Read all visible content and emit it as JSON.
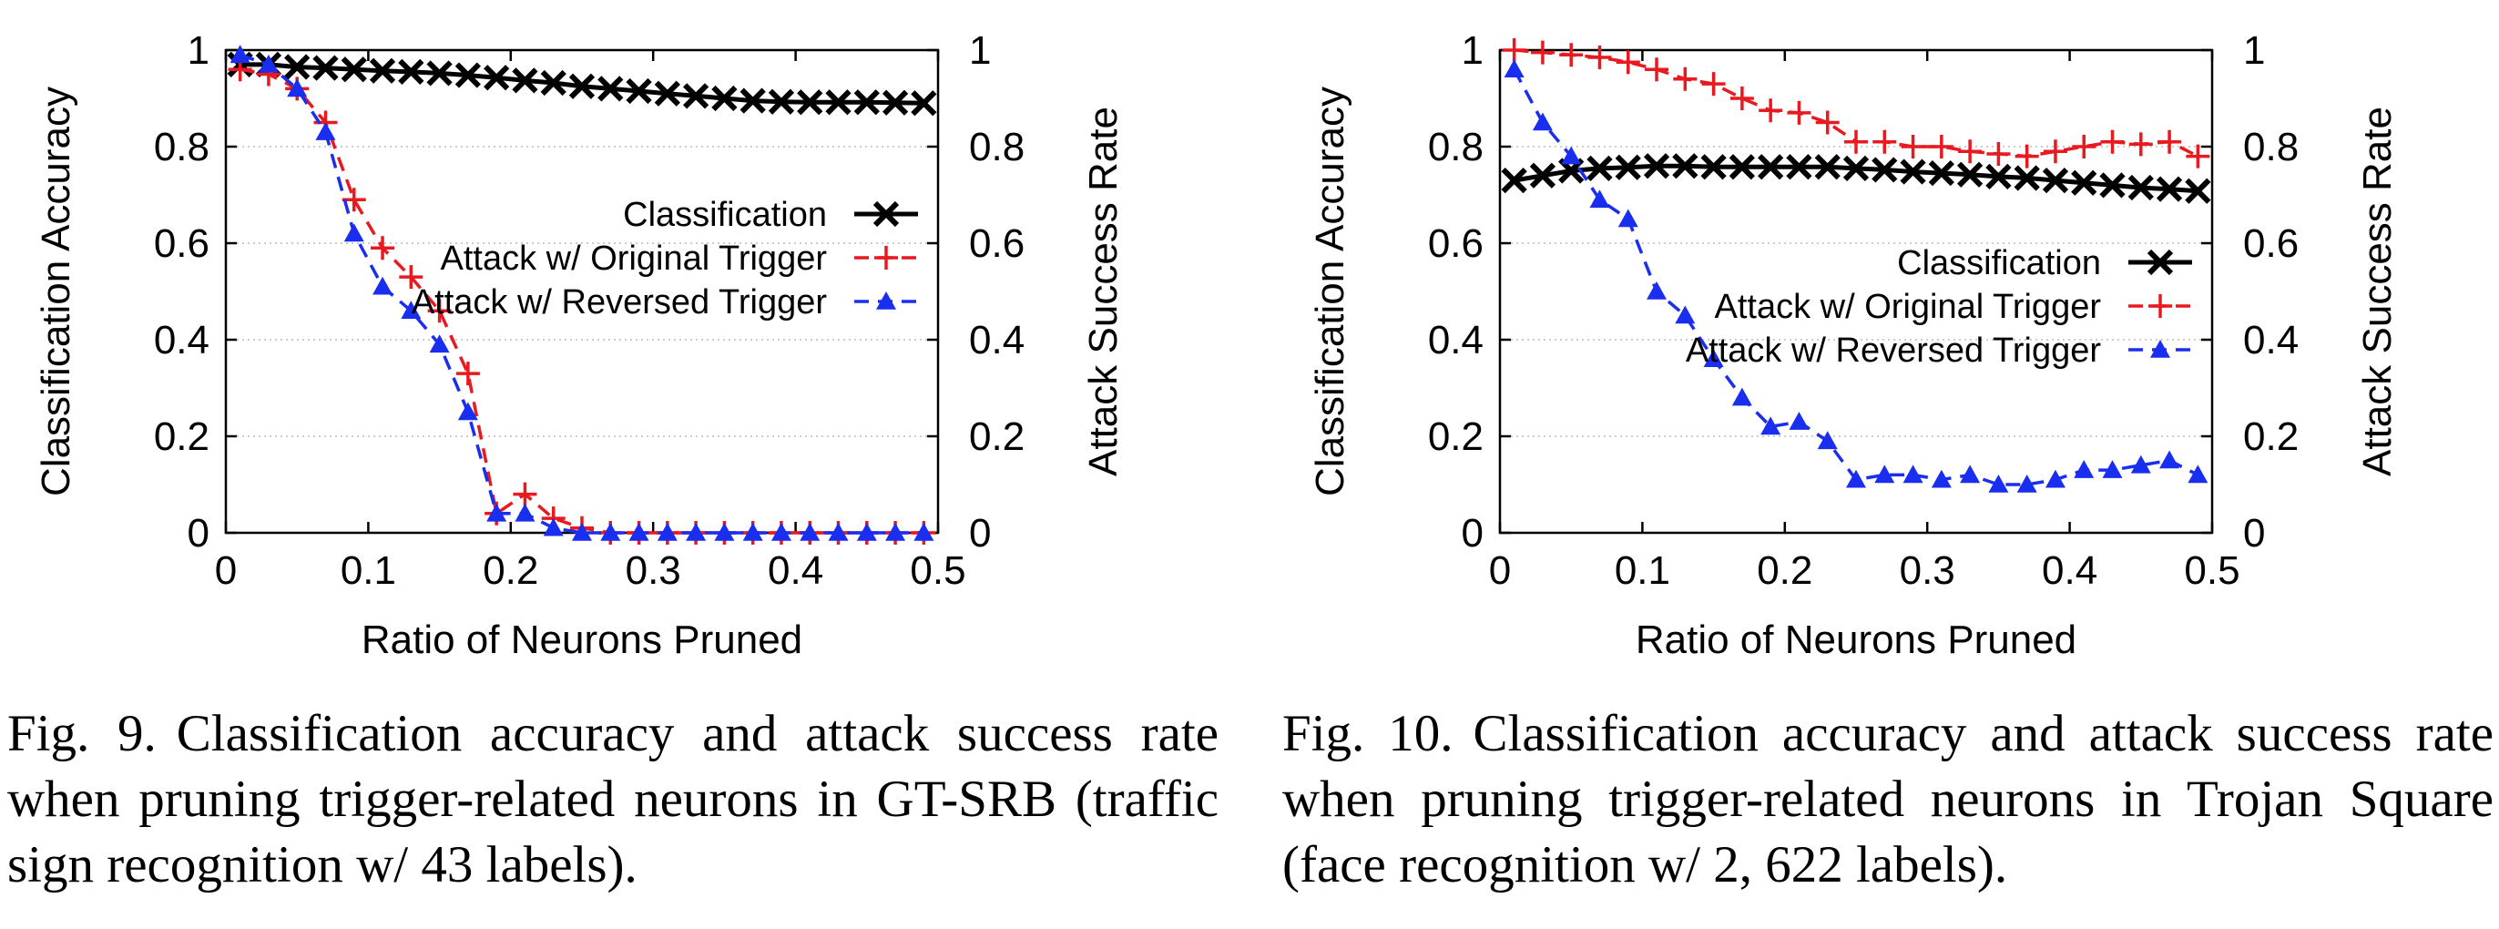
{
  "chart_data": [
    {
      "type": "line",
      "xlabel": "Ratio of Neurons Pruned",
      "ylabel": "Classification Accuracy",
      "y2label": "Attack Success Rate",
      "xlim": [
        0,
        0.5
      ],
      "ylim": [
        0,
        1
      ],
      "y2lim": [
        0,
        1
      ],
      "xticks": [
        "0",
        "0.1",
        "0.2",
        "0.3",
        "0.4",
        "0.5"
      ],
      "yticks": [
        "0",
        "0.2",
        "0.4",
        "0.6",
        "0.8",
        "1"
      ],
      "grid": true,
      "legend_position": "center-right",
      "series": [
        {
          "name": "Classification",
          "color": "#000000",
          "marker": "x",
          "dash": "solid",
          "x": [
            0.01,
            0.03,
            0.05,
            0.07,
            0.09,
            0.11,
            0.13,
            0.15,
            0.17,
            0.19,
            0.21,
            0.23,
            0.25,
            0.27,
            0.29,
            0.31,
            0.33,
            0.35,
            0.37,
            0.39,
            0.41,
            0.43,
            0.45,
            0.47,
            0.49
          ],
          "y": [
            0.97,
            0.97,
            0.965,
            0.963,
            0.96,
            0.957,
            0.955,
            0.952,
            0.948,
            0.943,
            0.937,
            0.932,
            0.925,
            0.92,
            0.915,
            0.91,
            0.905,
            0.9,
            0.895,
            0.893,
            0.892,
            0.892,
            0.892,
            0.891,
            0.89
          ]
        },
        {
          "name": "Attack w/ Original Trigger",
          "color": "#e8191f",
          "marker": "+",
          "dash": "dashed",
          "x": [
            0.01,
            0.03,
            0.05,
            0.07,
            0.09,
            0.11,
            0.13,
            0.15,
            0.17,
            0.19,
            0.21,
            0.23,
            0.25,
            0.27,
            0.29,
            0.31,
            0.33,
            0.35,
            0.37,
            0.39,
            0.41,
            0.43,
            0.45,
            0.47,
            0.49
          ],
          "y": [
            0.96,
            0.95,
            0.92,
            0.85,
            0.69,
            0.59,
            0.53,
            0.46,
            0.33,
            0.04,
            0.08,
            0.03,
            0.01,
            0.0,
            0.0,
            0.0,
            0.0,
            0.0,
            0.0,
            0.0,
            0.0,
            0.0,
            0.0,
            0.0,
            0.0
          ]
        },
        {
          "name": "Attack w/ Reversed Trigger",
          "color": "#1a2ef0",
          "marker": "triangle",
          "dash": "dashed",
          "x": [
            0.01,
            0.03,
            0.05,
            0.07,
            0.09,
            0.11,
            0.13,
            0.15,
            0.17,
            0.19,
            0.21,
            0.23,
            0.25,
            0.27,
            0.29,
            0.31,
            0.33,
            0.35,
            0.37,
            0.39,
            0.41,
            0.43,
            0.45,
            0.47,
            0.49
          ],
          "y": [
            0.99,
            0.97,
            0.92,
            0.83,
            0.62,
            0.51,
            0.46,
            0.39,
            0.25,
            0.04,
            0.04,
            0.01,
            0.0,
            0.0,
            0.0,
            0.0,
            0.0,
            0.0,
            0.0,
            0.0,
            0.0,
            0.0,
            0.0,
            0.0,
            0.0
          ]
        }
      ]
    },
    {
      "type": "line",
      "xlabel": "Ratio of Neurons Pruned",
      "ylabel": "Classification Accuracy",
      "y2label": "Attack Success Rate",
      "xlim": [
        0,
        0.5
      ],
      "ylim": [
        0,
        1
      ],
      "y2lim": [
        0,
        1
      ],
      "xticks": [
        "0",
        "0.1",
        "0.2",
        "0.3",
        "0.4",
        "0.5"
      ],
      "yticks": [
        "0",
        "0.2",
        "0.4",
        "0.6",
        "0.8",
        "1"
      ],
      "grid": true,
      "legend_position": "center-right",
      "series": [
        {
          "name": "Classification",
          "color": "#000000",
          "marker": "x",
          "dash": "solid",
          "x": [
            0.01,
            0.03,
            0.05,
            0.07,
            0.09,
            0.11,
            0.13,
            0.15,
            0.17,
            0.19,
            0.21,
            0.23,
            0.25,
            0.27,
            0.29,
            0.31,
            0.33,
            0.35,
            0.37,
            0.39,
            0.41,
            0.43,
            0.45,
            0.47,
            0.49
          ],
          "y": [
            0.73,
            0.74,
            0.75,
            0.755,
            0.757,
            0.76,
            0.76,
            0.758,
            0.758,
            0.758,
            0.758,
            0.758,
            0.755,
            0.752,
            0.748,
            0.745,
            0.742,
            0.738,
            0.735,
            0.73,
            0.725,
            0.72,
            0.715,
            0.712,
            0.708
          ]
        },
        {
          "name": "Attack w/ Original Trigger",
          "color": "#e8191f",
          "marker": "+",
          "dash": "dashed",
          "x": [
            0.01,
            0.03,
            0.05,
            0.07,
            0.09,
            0.11,
            0.13,
            0.15,
            0.17,
            0.19,
            0.21,
            0.23,
            0.25,
            0.27,
            0.29,
            0.31,
            0.33,
            0.35,
            0.37,
            0.39,
            0.41,
            0.43,
            0.45,
            0.47,
            0.49
          ],
          "y": [
            1.0,
            0.995,
            0.99,
            0.985,
            0.975,
            0.96,
            0.94,
            0.93,
            0.9,
            0.875,
            0.87,
            0.85,
            0.81,
            0.81,
            0.8,
            0.8,
            0.79,
            0.785,
            0.78,
            0.79,
            0.8,
            0.81,
            0.805,
            0.81,
            0.78
          ]
        },
        {
          "name": "Attack w/ Reversed Trigger",
          "color": "#1a2ef0",
          "marker": "triangle",
          "dash": "dashed",
          "x": [
            0.01,
            0.03,
            0.05,
            0.07,
            0.09,
            0.11,
            0.13,
            0.15,
            0.17,
            0.19,
            0.21,
            0.23,
            0.25,
            0.27,
            0.29,
            0.31,
            0.33,
            0.35,
            0.37,
            0.39,
            0.41,
            0.43,
            0.45,
            0.47,
            0.49
          ],
          "y": [
            0.96,
            0.85,
            0.78,
            0.69,
            0.65,
            0.5,
            0.45,
            0.36,
            0.28,
            0.22,
            0.23,
            0.19,
            0.11,
            0.12,
            0.12,
            0.11,
            0.12,
            0.1,
            0.1,
            0.11,
            0.13,
            0.13,
            0.14,
            0.15,
            0.12
          ]
        }
      ]
    }
  ],
  "captions": [
    {
      "label": "Fig. 9.",
      "text": "Classification accuracy and attack success rate when pruning trigger-related neurons in GT-SRB (traffic sign recognition w/ 43 labels)."
    },
    {
      "label": "Fig. 10.",
      "text": "Classification accuracy and attack success rate when pruning trigger-related neurons in Trojan Square (face recognition w/ 2, 622 labels)."
    }
  ]
}
